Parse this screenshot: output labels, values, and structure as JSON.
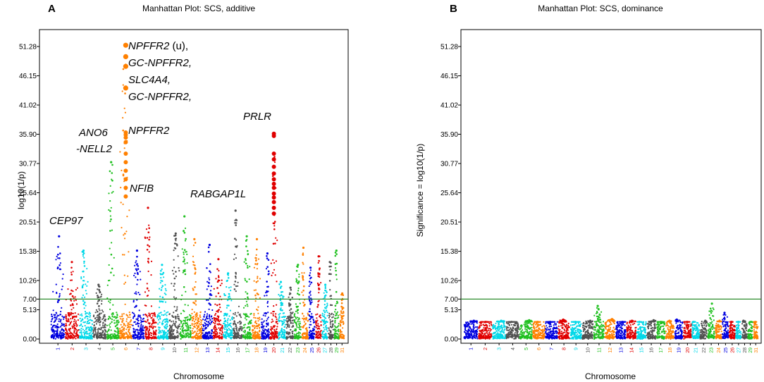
{
  "chart_data": [
    {
      "type": "scatter",
      "panel": "A",
      "title": "Manhattan Plot: SCS, additive",
      "xlabel": "Chromosome",
      "ylabel": "log10(1/p)",
      "yticks": [
        "0.00",
        "5.13",
        "7.00",
        "10.26",
        "15.38",
        "20.51",
        "25.64",
        "30.77",
        "35.90",
        "41.02",
        "46.15",
        "51.28"
      ],
      "ylim": [
        0,
        54
      ],
      "threshold": 7.0,
      "threshold_color": "#2e8b2e",
      "chromosomes": [
        "1",
        "2",
        "3",
        "4",
        "5",
        "6",
        "7",
        "8",
        "9",
        "10",
        "11",
        "12",
        "13",
        "14",
        "15",
        "16",
        "17",
        "18",
        "19",
        "20",
        "21",
        "22",
        "23",
        "24",
        "25",
        "26",
        "27",
        "28",
        "29",
        "31"
      ],
      "chrom_colors": [
        "#0000e0",
        "#e00000",
        "#00d8e8",
        "#505050",
        "#20c020",
        "#ff8000",
        "#0000e0",
        "#e00000",
        "#00d8e8",
        "#505050",
        "#20c020",
        "#ff8000",
        "#0000e0",
        "#e00000",
        "#00d8e8",
        "#505050",
        "#20c020",
        "#ff8000",
        "#0000e0",
        "#e00000",
        "#00d8e8",
        "#505050",
        "#20c020",
        "#ff8000",
        "#0000e0",
        "#e00000",
        "#00d8e8",
        "#505050",
        "#20c020",
        "#ff8000"
      ],
      "chrom_peaks": [
        18.0,
        13.5,
        15.5,
        9.5,
        31.0,
        51.5,
        15.5,
        23.0,
        13.0,
        18.5,
        21.5,
        17.5,
        16.5,
        14.0,
        11.5,
        22.5,
        18.0,
        17.5,
        15.0,
        36.0,
        10.0,
        9.0,
        13.0,
        16.0,
        12.5,
        14.5,
        9.5,
        13.5,
        15.5,
        8.0
      ],
      "top_hits": [
        {
          "chromosome": "6",
          "values": [
            51.5,
            49.5,
            47.8,
            44.0,
            36.2,
            35.8,
            35.3,
            34.5,
            32.5,
            31.0,
            29.5,
            28.0,
            26.5,
            25.0
          ]
        },
        {
          "chromosome": "20",
          "values": [
            36.0,
            35.6,
            32.5,
            31.5,
            30.2,
            29.0,
            28.0,
            27.2,
            26.5,
            25.5,
            24.8,
            24.0,
            23.0,
            22.0
          ]
        }
      ],
      "annotations": [
        {
          "label": "NPFFR2",
          "suffix": " (u),",
          "chromosome": "6"
        },
        {
          "label": "GC-NPFFR2,",
          "chromosome": "6"
        },
        {
          "label": "SLC4A4,",
          "chromosome": "6"
        },
        {
          "label": "GC-NPFFR2,",
          "chromosome": "6"
        },
        {
          "label": "NPFFR2",
          "chromosome": "6"
        },
        {
          "label": "ANO6",
          "chromosome": "5"
        },
        {
          "label": "-NELL2",
          "chromosome": "5"
        },
        {
          "label": "NFIB",
          "chromosome": "8"
        },
        {
          "label": "CEP97",
          "chromosome": "1"
        },
        {
          "label": "RABGAP1L",
          "chromosome": "16"
        },
        {
          "label": "PRLR",
          "chromosome": "20"
        }
      ]
    },
    {
      "type": "scatter",
      "panel": "B",
      "title": "Manhattan Plot: SCS, dominance",
      "xlabel": "Chromosome",
      "ylabel": "Significance = log10(1/p)",
      "yticks": [
        "0.00",
        "5.13",
        "7.00",
        "10.26",
        "15.38",
        "20.51",
        "25.64",
        "30.77",
        "35.90",
        "41.02",
        "46.15",
        "51.28"
      ],
      "ylim": [
        0,
        54
      ],
      "threshold": 7.0,
      "threshold_color": "#2e8b2e",
      "chromosomes": [
        "1",
        "2",
        "3",
        "4",
        "5",
        "6",
        "7",
        "8",
        "9",
        "10",
        "11",
        "12",
        "13",
        "14",
        "15",
        "16",
        "17",
        "18",
        "19",
        "20",
        "21",
        "22",
        "23",
        "24",
        "25",
        "26",
        "27",
        "28",
        "29",
        "31"
      ],
      "chrom_colors": [
        "#0000e0",
        "#e00000",
        "#00d8e8",
        "#505050",
        "#20c020",
        "#ff8000",
        "#0000e0",
        "#e00000",
        "#00d8e8",
        "#505050",
        "#20c020",
        "#ff8000",
        "#0000e0",
        "#e00000",
        "#00d8e8",
        "#505050",
        "#20c020",
        "#ff8000",
        "#0000e0",
        "#e00000",
        "#00d8e8",
        "#505050",
        "#20c020",
        "#ff8000",
        "#0000e0",
        "#e00000",
        "#00d8e8",
        "#505050",
        "#20c020",
        "#ff8000"
      ],
      "chrom_peaks": [
        3.2,
        3.0,
        3.2,
        3.0,
        3.3,
        3.0,
        3.0,
        3.4,
        3.0,
        3.2,
        5.8,
        3.5,
        3.0,
        3.2,
        3.0,
        3.3,
        3.0,
        3.2,
        3.4,
        3.0,
        3.0,
        3.2,
        6.2,
        3.2,
        4.6,
        3.0,
        3.0,
        3.2,
        3.0,
        3.0
      ],
      "top_hits": [],
      "annotations": []
    }
  ]
}
